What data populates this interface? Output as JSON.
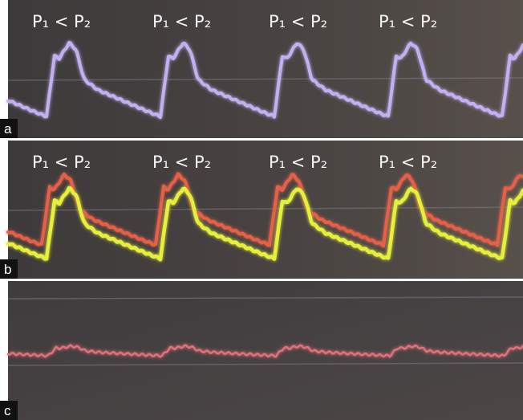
{
  "panels": [
    {
      "label": "a",
      "annotations": [
        "P₁ < P₂",
        "P₁ < P₂",
        "P₁ < P₂",
        "P₁ < P₂"
      ]
    },
    {
      "label": "b",
      "annotations": [
        "P₁ < P₂",
        "P₁ < P₂",
        "P₁ < P₂",
        "P₁ < P₂"
      ]
    },
    {
      "label": "c"
    }
  ]
}
